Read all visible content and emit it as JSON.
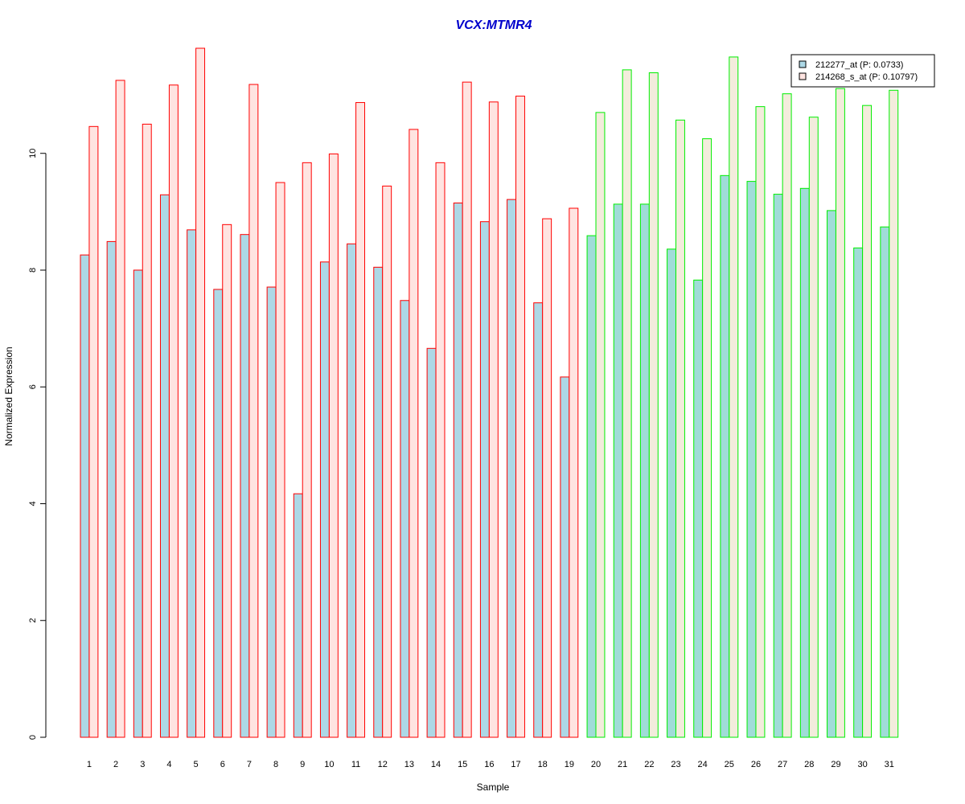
{
  "chart_data": {
    "type": "bar",
    "title": "VCX:MTMR4",
    "xlabel": "Sample",
    "ylabel": "Normalized Expression",
    "ylim": [
      0,
      11.8
    ],
    "yticks": [
      "0",
      "2",
      "4",
      "6",
      "8",
      "10"
    ],
    "categories": [
      "1",
      "2",
      "3",
      "4",
      "5",
      "6",
      "7",
      "8",
      "9",
      "10",
      "11",
      "12",
      "13",
      "14",
      "15",
      "16",
      "17",
      "18",
      "19",
      "20",
      "21",
      "22",
      "23",
      "24",
      "25",
      "26",
      "27",
      "28",
      "29",
      "30",
      "31"
    ],
    "series": [
      {
        "name": "212277_at (P: 0.0733)",
        "fill": "#add8e6",
        "values": [
          8.26,
          8.49,
          8.0,
          9.29,
          8.69,
          7.67,
          8.61,
          7.71,
          4.17,
          8.14,
          8.45,
          8.05,
          7.48,
          6.66,
          9.15,
          8.83,
          9.21,
          7.44,
          6.17,
          8.59,
          9.13,
          9.13,
          8.36,
          7.83,
          9.62,
          9.52,
          9.3,
          9.4,
          9.02,
          8.38,
          8.74
        ]
      },
      {
        "name": "214268_s_at (P: 0.10797)",
        "fill": "#ffe4e1",
        "values": [
          10.46,
          11.25,
          10.5,
          11.17,
          11.8,
          8.78,
          11.18,
          9.5,
          9.84,
          9.99,
          10.87,
          9.44,
          10.41,
          9.84,
          11.22,
          10.88,
          10.98,
          8.88,
          9.06,
          10.7,
          11.43,
          11.38,
          10.57,
          10.25,
          11.65,
          10.8,
          11.02,
          10.62,
          11.11,
          10.82,
          11.08
        ]
      }
    ],
    "group_border_colors": [
      "#ff0000",
      "#ff0000",
      "#ff0000",
      "#ff0000",
      "#ff0000",
      "#ff0000",
      "#ff0000",
      "#ff0000",
      "#ff0000",
      "#ff0000",
      "#ff0000",
      "#ff0000",
      "#ff0000",
      "#ff0000",
      "#ff0000",
      "#ff0000",
      "#ff0000",
      "#ff0000",
      "#ff0000",
      "#00ee00",
      "#00ee00",
      "#00ee00",
      "#00ee00",
      "#00ee00",
      "#00ee00",
      "#00ee00",
      "#00ee00",
      "#00ee00",
      "#00ee00",
      "#00ee00",
      "#00ee00"
    ],
    "group_fill_overrides": {
      "series0": "#a0dcd8",
      "series1": "#f3ecdc"
    },
    "grid": false,
    "legend_position": "top-right"
  }
}
